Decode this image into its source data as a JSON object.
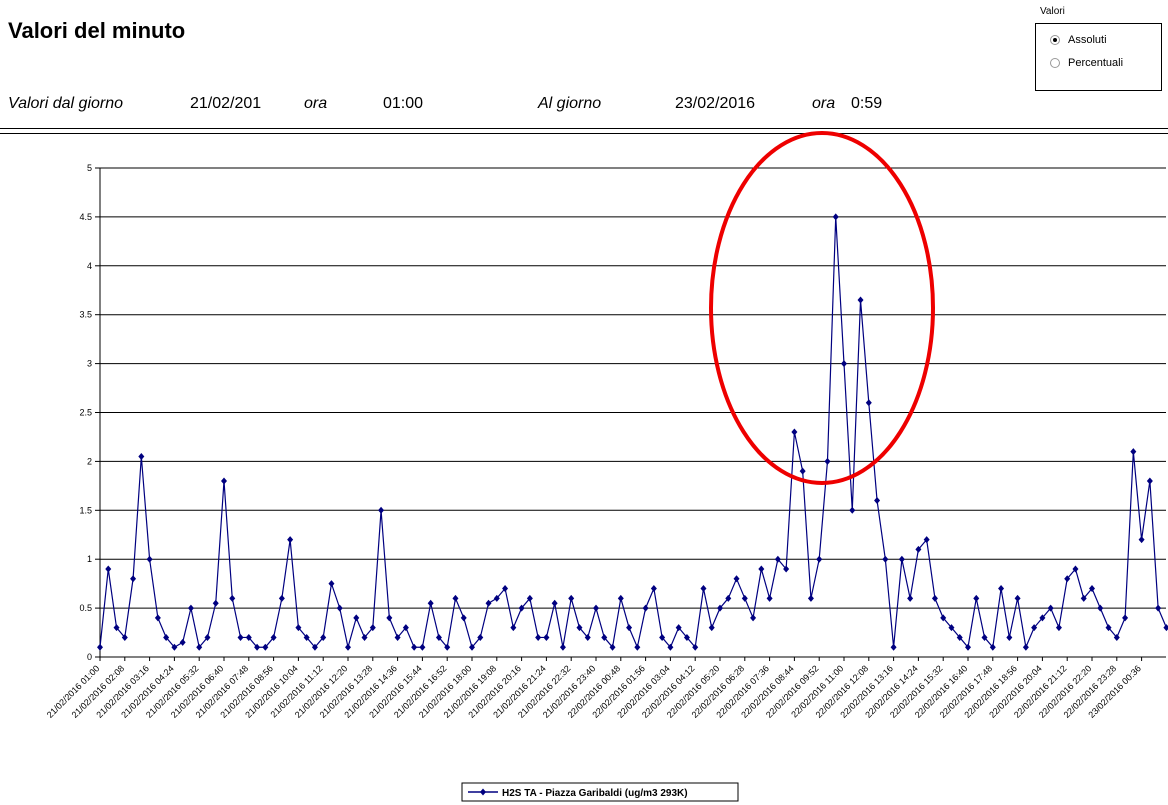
{
  "header": {
    "title": "Valori del minuto"
  },
  "options": {
    "caption": "Valori",
    "choices": [
      "Assoluti",
      "Percentuali"
    ],
    "selected": 0
  },
  "range": {
    "from_label": "Valori dal giorno",
    "from_date": "21/02/201",
    "from_time_label": "ora",
    "from_time": "01:00",
    "to_label": "Al giorno",
    "to_date": "23/02/2016",
    "to_time_label": "ora",
    "to_time": "0:59"
  },
  "chart_data": {
    "type": "line",
    "categories": [
      "21/02/2016 01:00",
      null,
      null,
      "21/02/2016 02:08",
      null,
      null,
      "21/02/2016 03:16",
      null,
      null,
      "21/02/2016 04:24",
      null,
      null,
      "21/02/2016 05:32",
      null,
      null,
      "21/02/2016 06:40",
      null,
      null,
      "21/02/2016 07:48",
      null,
      null,
      "21/02/2016 08:56",
      null,
      null,
      "21/02/2016 10:04",
      null,
      null,
      "21/02/2016 11:12",
      null,
      null,
      "21/02/2016 12:20",
      null,
      null,
      "21/02/2016 13:28",
      null,
      null,
      "21/02/2016 14:36",
      null,
      null,
      "21/02/2016 15:44",
      null,
      null,
      "21/02/2016 16:52",
      null,
      null,
      "21/02/2016 18:00",
      null,
      null,
      "21/02/2016 19:08",
      null,
      null,
      "21/02/2016 20:16",
      null,
      null,
      "21/02/2016 21:24",
      null,
      null,
      "21/02/2016 22:32",
      null,
      null,
      "21/02/2016 23:40",
      null,
      null,
      "22/02/2016 00:48",
      null,
      null,
      "22/02/2016 01:56",
      null,
      null,
      "22/02/2016 03:04",
      null,
      null,
      "22/02/2016 04:12",
      null,
      null,
      "22/02/2016 05:20",
      null,
      null,
      "22/02/2016 06:28",
      null,
      null,
      "22/02/2016 07:36",
      null,
      null,
      "22/02/2016 08:44",
      null,
      null,
      "22/02/2016 09:52",
      null,
      null,
      "22/02/2016 11:00",
      null,
      null,
      "22/02/2016 12:08",
      null,
      null,
      "22/02/2016 13:16",
      null,
      null,
      "22/02/2016 14:24",
      null,
      null,
      "22/02/2016 15:32",
      null,
      null,
      "22/02/2016 16:40",
      null,
      null,
      "22/02/2016 17:48",
      null,
      null,
      "22/02/2016 18:56",
      null,
      null,
      "22/02/2016 20:04",
      null,
      null,
      "22/02/2016 21:12",
      null,
      null,
      "22/02/2016 22:20",
      null,
      null,
      "22/02/2016 23:28",
      null,
      null,
      "23/02/2016 00:36",
      null,
      null,
      null
    ],
    "series": [
      {
        "name": "H2S TA - Piazza Garibaldi (ug/m3 293K)",
        "color": "#000080",
        "values": [
          0.1,
          0.9,
          0.3,
          0.2,
          0.8,
          2.05,
          1.0,
          0.4,
          0.2,
          0.1,
          0.15,
          0.5,
          0.1,
          0.2,
          0.55,
          1.8,
          0.6,
          0.2,
          0.2,
          0.1,
          0.1,
          0.2,
          0.6,
          1.2,
          0.3,
          0.2,
          0.1,
          0.2,
          0.75,
          0.5,
          0.1,
          0.4,
          0.2,
          0.3,
          1.5,
          0.4,
          0.2,
          0.3,
          0.1,
          0.1,
          0.55,
          0.2,
          0.1,
          0.6,
          0.4,
          0.1,
          0.2,
          0.55,
          0.6,
          0.7,
          0.3,
          0.5,
          0.6,
          0.2,
          0.2,
          0.55,
          0.1,
          0.6,
          0.3,
          0.2,
          0.5,
          0.2,
          0.1,
          0.6,
          0.3,
          0.1,
          0.5,
          0.7,
          0.2,
          0.1,
          0.3,
          0.2,
          0.1,
          0.7,
          0.3,
          0.5,
          0.6,
          0.8,
          0.6,
          0.4,
          0.9,
          0.6,
          1.0,
          0.9,
          2.3,
          1.9,
          0.6,
          1.0,
          2.0,
          4.5,
          3.0,
          1.5,
          3.65,
          2.6,
          1.6,
          1.0,
          0.1,
          1.0,
          0.6,
          1.1,
          1.2,
          0.6,
          0.4,
          0.3,
          0.2,
          0.1,
          0.6,
          0.2,
          0.1,
          0.7,
          0.2,
          0.6,
          0.1,
          0.3,
          0.4,
          0.5,
          0.3,
          0.8,
          0.9,
          0.6,
          0.7,
          0.5,
          0.3,
          0.2,
          0.4,
          2.1,
          1.2,
          1.8,
          0.5,
          0.3
        ]
      }
    ],
    "ylim": [
      0,
      5
    ],
    "yticks": [
      0,
      0.5,
      1,
      1.5,
      2,
      2.5,
      3,
      3.5,
      4,
      4.5,
      5
    ],
    "grid": true,
    "legend": "bottom"
  }
}
